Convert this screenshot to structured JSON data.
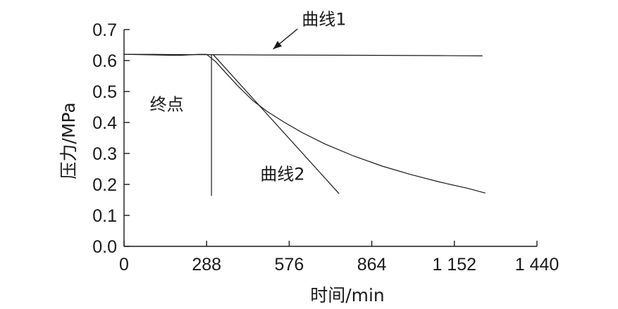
{
  "chart_data": {
    "type": "line",
    "xlabel": "时间/min",
    "ylabel": "压力/MPa",
    "xlim": [
      0,
      1440
    ],
    "ylim": [
      0.0,
      0.7
    ],
    "x_ticks": [
      {
        "value": 0,
        "label": "0"
      },
      {
        "value": 288,
        "label": "288"
      },
      {
        "value": 576,
        "label": "576"
      },
      {
        "value": 864,
        "label": "864"
      },
      {
        "value": 1152,
        "label": "1 152"
      },
      {
        "value": 1440,
        "label": "1 440"
      }
    ],
    "y_ticks": [
      {
        "value": 0.0,
        "label": "0.0"
      },
      {
        "value": 0.1,
        "label": "0.1"
      },
      {
        "value": 0.2,
        "label": "0.2"
      },
      {
        "value": 0.3,
        "label": "0.3"
      },
      {
        "value": 0.4,
        "label": "0.4"
      },
      {
        "value": 0.5,
        "label": "0.5"
      },
      {
        "value": 0.6,
        "label": "0.6"
      },
      {
        "value": 0.7,
        "label": "0.7"
      }
    ],
    "grid": false,
    "legend": "none",
    "series": [
      {
        "name": "曲线1",
        "x": [
          0,
          100,
          200,
          288,
          500,
          800,
          1100,
          1250
        ],
        "y": [
          0.62,
          0.62,
          0.619,
          0.619,
          0.618,
          0.617,
          0.616,
          0.615
        ]
      },
      {
        "name": "曲线2",
        "x": [
          0,
          60,
          120,
          160,
          200,
          240,
          260,
          288,
          320,
          360,
          400,
          450,
          500,
          560,
          620,
          700,
          800,
          900,
          1000,
          1100,
          1200,
          1260
        ],
        "y": [
          0.62,
          0.619,
          0.618,
          0.617,
          0.617,
          0.619,
          0.62,
          0.62,
          0.596,
          0.555,
          0.515,
          0.47,
          0.435,
          0.4,
          0.368,
          0.331,
          0.292,
          0.259,
          0.232,
          0.208,
          0.187,
          0.172
        ]
      },
      {
        "x": [
          310,
          750
        ],
        "y": [
          0.62,
          0.17
        ]
      },
      {
        "x": [
          305,
          305
        ],
        "y": [
          0.62,
          0.163
        ]
      }
    ],
    "annotations": [
      {
        "text": "曲线1",
        "x": 620,
        "y": 0.715
      },
      {
        "text": "曲线2",
        "x": 475,
        "y": 0.215
      },
      {
        "text": "终点",
        "x": 90,
        "y": 0.44
      }
    ]
  }
}
